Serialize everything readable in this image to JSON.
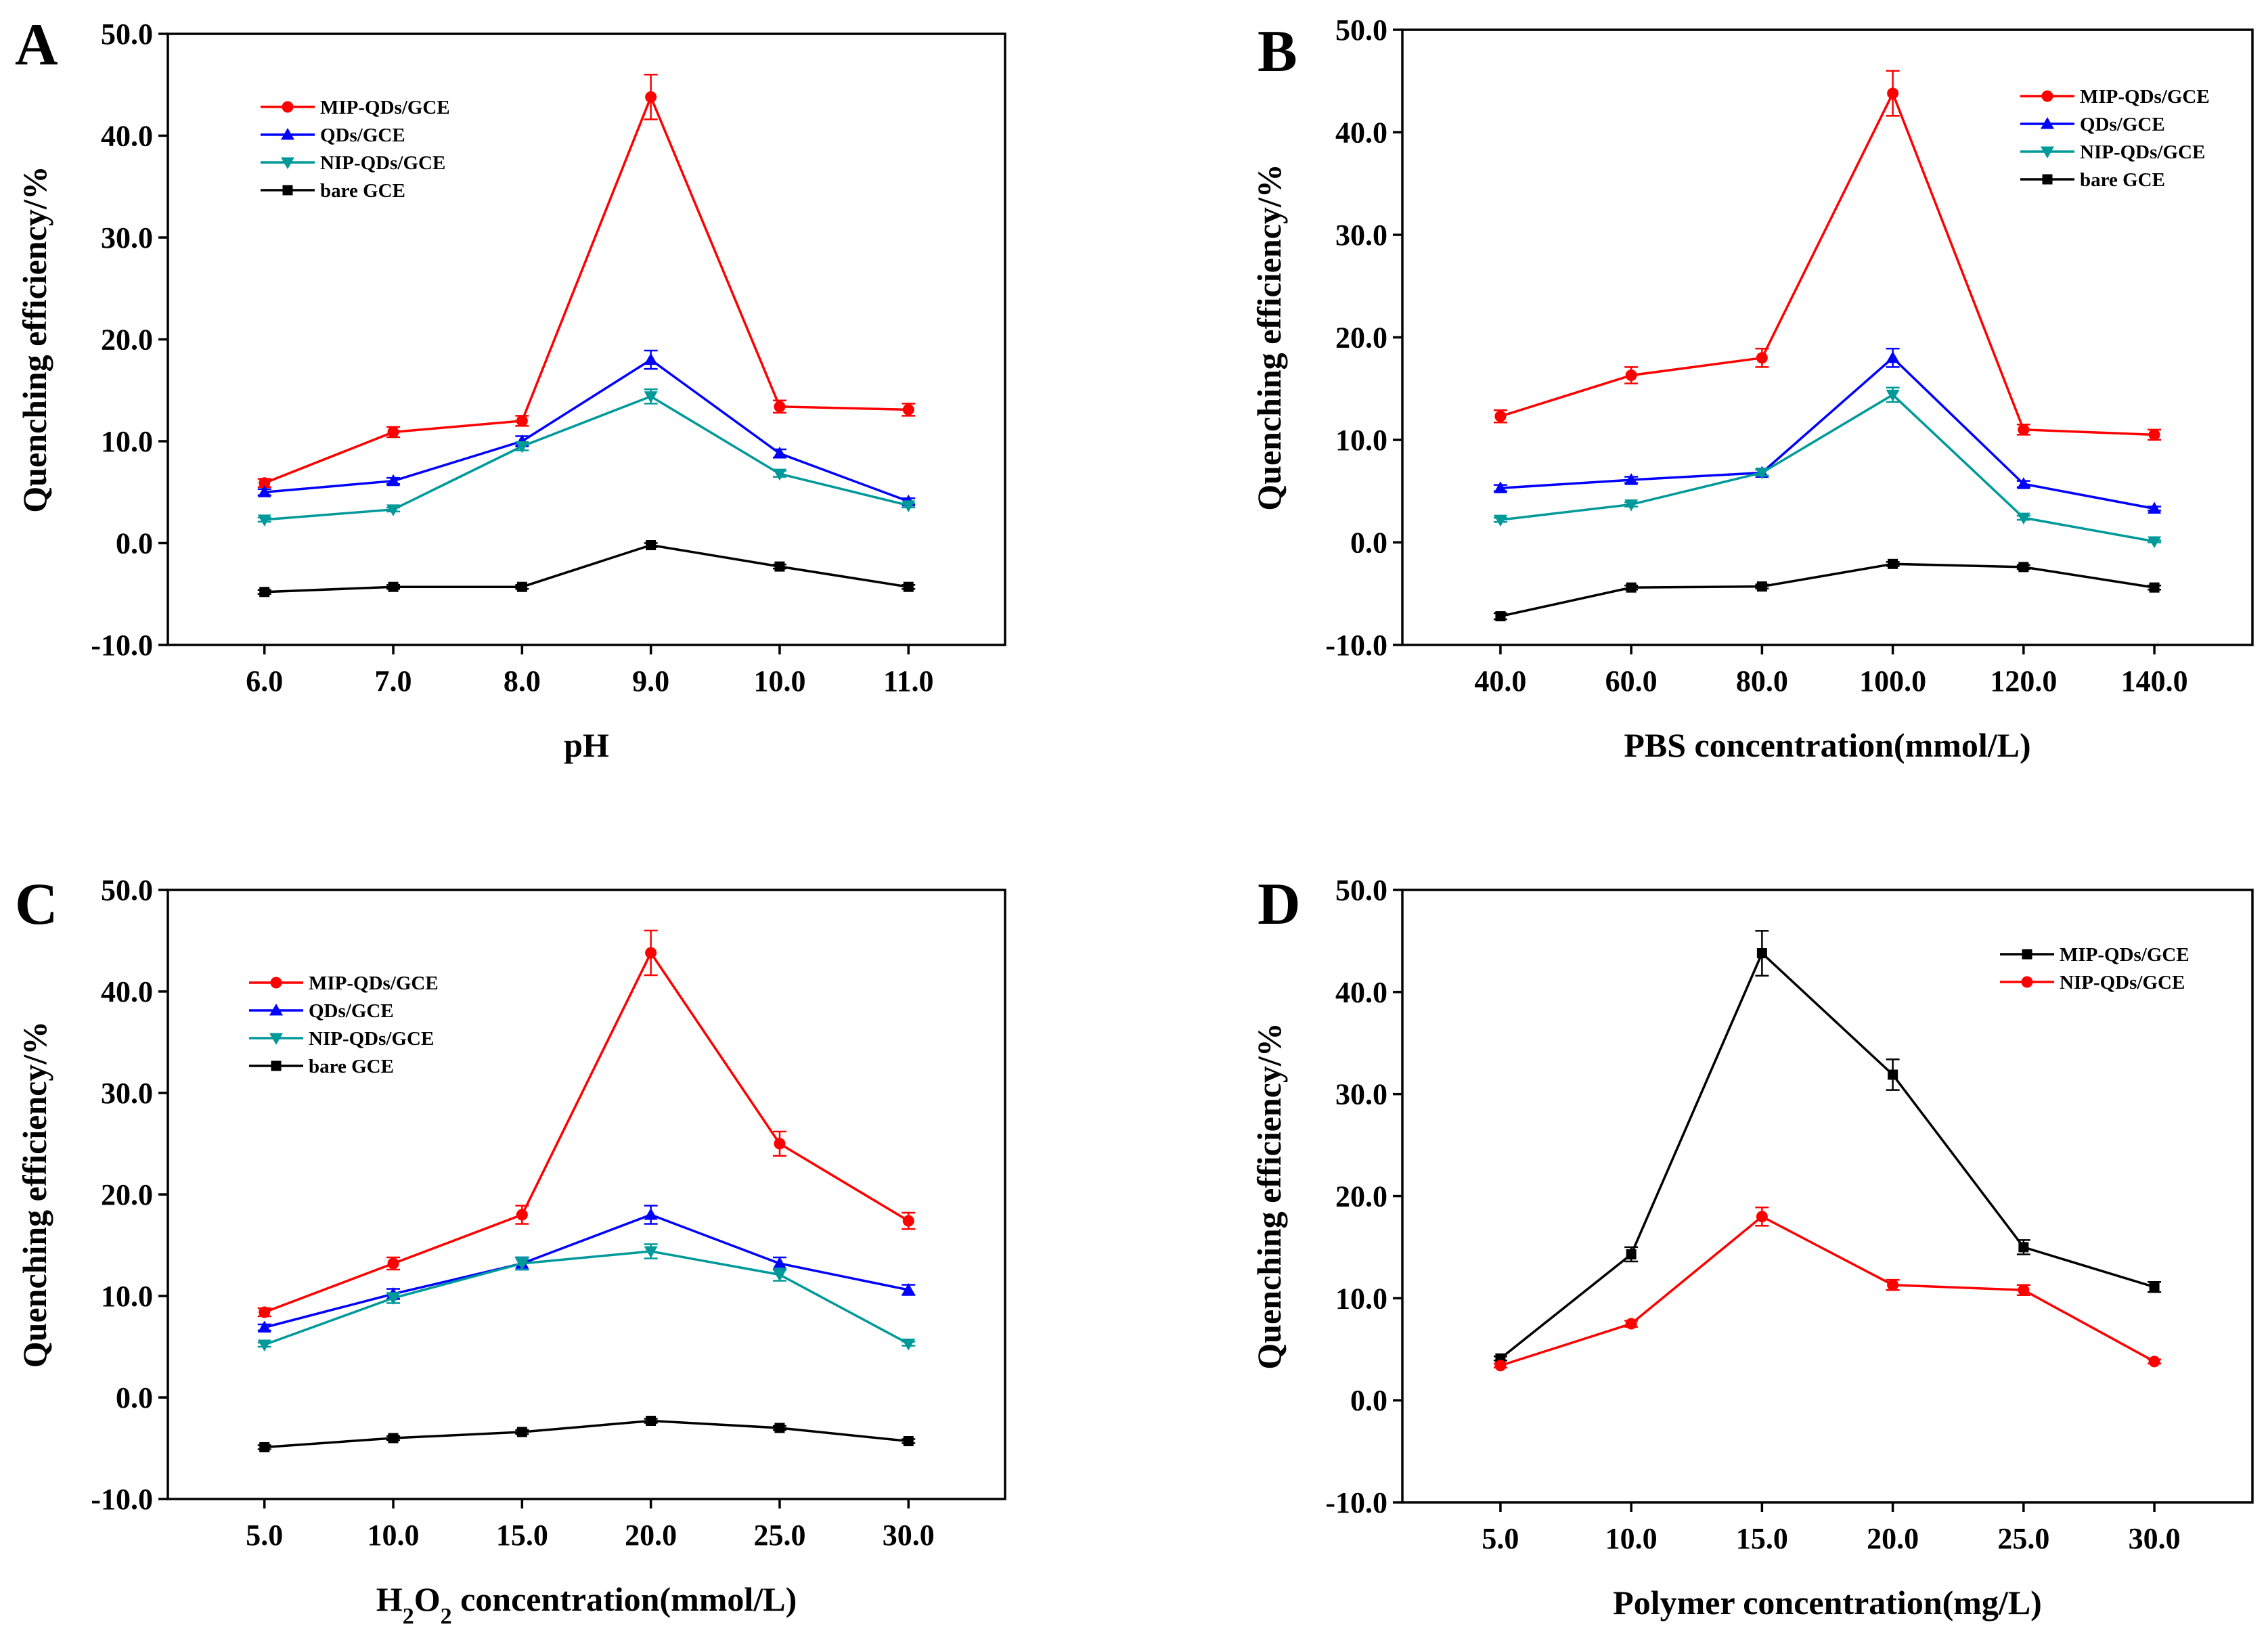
{
  "figure": {
    "y_axis_title": "Quenching efficiency/%",
    "y_ticks": [
      "50.0",
      "40.0",
      "30.0",
      "20.0",
      "10.0",
      "0.0",
      "-10.0"
    ],
    "y_tick_values": [
      50,
      40,
      30,
      20,
      10,
      0,
      -10
    ]
  },
  "colors": {
    "red": "#ff0000",
    "blue": "#0000ff",
    "teal": "#009999",
    "black": "#000000"
  },
  "chart_data": [
    {
      "panel": "A",
      "type": "line",
      "title": "",
      "xlabel": "pH",
      "ylabel": "Quenching efficiency/%",
      "ylim": [
        -10,
        50
      ],
      "categories": [
        "6.0",
        "7.0",
        "8.0",
        "9.0",
        "10.0",
        "11.0"
      ],
      "series": [
        {
          "name": "MIP-QDs/GCE",
          "color": "red",
          "marker": "circle",
          "values": [
            5.9,
            10.9,
            12.0,
            43.8,
            13.4,
            13.1
          ],
          "errors": [
            0.4,
            0.5,
            0.5,
            2.2,
            0.6,
            0.6
          ]
        },
        {
          "name": "QDs/GCE",
          "color": "blue",
          "marker": "triangle-up",
          "values": [
            5.0,
            6.1,
            10.0,
            18.0,
            8.8,
            4.1
          ],
          "errors": [
            0.3,
            0.3,
            0.5,
            0.9,
            0.4,
            0.3
          ]
        },
        {
          "name": "NIP-QDs/GCE",
          "color": "teal",
          "marker": "triangle-down",
          "values": [
            2.3,
            3.3,
            9.5,
            14.4,
            6.8,
            3.7
          ],
          "errors": [
            0.2,
            0.2,
            0.4,
            0.7,
            0.3,
            0.2
          ]
        },
        {
          "name": "bare GCE",
          "color": "black",
          "marker": "square",
          "values": [
            -4.8,
            -4.3,
            -4.3,
            -0.2,
            -2.3,
            -4.3
          ],
          "errors": [
            0.2,
            0.2,
            0.2,
            0.2,
            0.2,
            0.2
          ]
        }
      ]
    },
    {
      "panel": "B",
      "type": "line",
      "title": "",
      "xlabel": "PBS concentration(mmol/L)",
      "ylabel": "Quenching efficiency/%",
      "ylim": [
        -10,
        50
      ],
      "categories": [
        "40.0",
        "60.0",
        "80.0",
        "100.0",
        "120.0",
        "140.0"
      ],
      "series": [
        {
          "name": "MIP-QDs/GCE",
          "color": "red",
          "marker": "circle",
          "values": [
            12.3,
            16.3,
            18.0,
            43.8,
            11.0,
            10.5
          ],
          "errors": [
            0.6,
            0.8,
            0.9,
            2.2,
            0.5,
            0.5
          ]
        },
        {
          "name": "QDs/GCE",
          "color": "blue",
          "marker": "triangle-up",
          "values": [
            5.3,
            6.1,
            6.8,
            18.0,
            5.7,
            3.3
          ],
          "errors": [
            0.3,
            0.3,
            0.3,
            0.9,
            0.3,
            0.2
          ]
        },
        {
          "name": "NIP-QDs/GCE",
          "color": "teal",
          "marker": "triangle-down",
          "values": [
            2.2,
            3.7,
            6.8,
            14.4,
            2.4,
            0.1
          ],
          "errors": [
            0.2,
            0.2,
            0.3,
            0.7,
            0.2,
            0.1
          ]
        },
        {
          "name": "bare GCE",
          "color": "black",
          "marker": "square",
          "values": [
            -7.2,
            -4.4,
            -4.3,
            -2.1,
            -2.4,
            -4.4
          ],
          "errors": [
            0.3,
            0.2,
            0.2,
            0.2,
            0.2,
            0.2
          ]
        }
      ]
    },
    {
      "panel": "C",
      "type": "line",
      "title": "",
      "xlabel": "H2O2 concentration(mmol/L)",
      "xlabel_parts": {
        "pre": "H",
        "sub1": "2",
        "mid": "O",
        "sub2": "2",
        "post": " concentration(mmol/L)"
      },
      "ylabel": "Quenching efficiency/%",
      "ylim": [
        -10,
        50
      ],
      "categories": [
        "5.0",
        "10.0",
        "15.0",
        "20.0",
        "25.0",
        "30.0"
      ],
      "series": [
        {
          "name": "MIP-QDs/GCE",
          "color": "red",
          "marker": "circle",
          "values": [
            8.4,
            13.2,
            18.0,
            43.8,
            25.0,
            17.4
          ],
          "errors": [
            0.4,
            0.6,
            0.9,
            2.2,
            1.2,
            0.8
          ]
        },
        {
          "name": "QDs/GCE",
          "color": "blue",
          "marker": "triangle-up",
          "values": [
            6.9,
            10.2,
            13.2,
            18.0,
            13.2,
            10.6
          ],
          "errors": [
            0.3,
            0.5,
            0.6,
            0.9,
            0.6,
            0.5
          ]
        },
        {
          "name": "NIP-QDs/GCE",
          "color": "teal",
          "marker": "triangle-down",
          "values": [
            5.2,
            9.8,
            13.2,
            14.4,
            12.1,
            5.3
          ],
          "errors": [
            0.2,
            0.5,
            0.6,
            0.7,
            0.6,
            0.2
          ]
        },
        {
          "name": "bare GCE",
          "color": "black",
          "marker": "square",
          "values": [
            -4.9,
            -4.0,
            -3.4,
            -2.3,
            -3.0,
            -4.3
          ],
          "errors": [
            0.2,
            0.2,
            0.2,
            0.2,
            0.2,
            0.2
          ]
        }
      ]
    },
    {
      "panel": "D",
      "type": "line",
      "title": "",
      "xlabel": "Polymer concentration(mg/L)",
      "ylabel": "Quenching efficiency/%",
      "ylim": [
        -10,
        50
      ],
      "categories": [
        "5.0",
        "10.0",
        "15.0",
        "20.0",
        "25.0",
        "30.0"
      ],
      "series": [
        {
          "name": "MIP-QDs/GCE",
          "color": "black",
          "marker": "square",
          "values": [
            4.1,
            14.3,
            43.8,
            31.9,
            15.0,
            11.1
          ],
          "errors": [
            0.2,
            0.7,
            2.2,
            1.5,
            0.7,
            0.5
          ]
        },
        {
          "name": "NIP-QDs/GCE",
          "color": "red",
          "marker": "circle",
          "values": [
            3.4,
            7.5,
            18.0,
            11.3,
            10.8,
            3.8
          ],
          "errors": [
            0.2,
            0.3,
            0.9,
            0.5,
            0.5,
            0.2
          ]
        }
      ]
    }
  ]
}
